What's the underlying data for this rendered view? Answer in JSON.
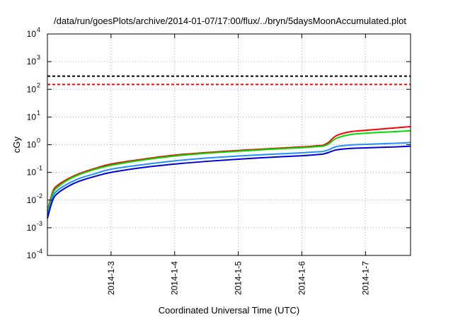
{
  "chart_data": {
    "type": "line",
    "title": "/data/run/goesPlots/archive/2014-01-07/17:00/flux/../bryn/5daysMoonAccumulated.plot",
    "xlabel": "Coordinated Universal Time (UTC)",
    "ylabel": "cGy",
    "y_scale": "log",
    "ylim": [
      0.0001,
      10000
    ],
    "xlim": [
      "2014-01-02T00:00",
      "2014-01-07T17:00"
    ],
    "grid": true,
    "x_ticks": [
      "2014-1-3",
      "2014-1-4",
      "2014-1-5",
      "2014-1-6",
      "2014-1-7"
    ],
    "x_tick_dates": [
      "2014-01-03T00:00",
      "2014-01-04T00:00",
      "2014-01-05T00:00",
      "2014-01-06T00:00",
      "2014-01-07T00:00"
    ],
    "y_ticks": [
      {
        "value": 0.0001,
        "base": "10",
        "exp": "-4"
      },
      {
        "value": 0.001,
        "base": "10",
        "exp": "-3"
      },
      {
        "value": 0.01,
        "base": "10",
        "exp": "-2"
      },
      {
        "value": 0.1,
        "base": "10",
        "exp": "-1"
      },
      {
        "value": 1,
        "base": "10",
        "exp": "0"
      },
      {
        "value": 10,
        "base": "10",
        "exp": "1"
      },
      {
        "value": 100,
        "base": "10",
        "exp": "2"
      },
      {
        "value": 1000,
        "base": "10",
        "exp": "3"
      },
      {
        "value": 10000,
        "base": "10",
        "exp": "4"
      }
    ],
    "reference_lines": [
      {
        "y": 300,
        "color": "#000000",
        "style": "dashed"
      },
      {
        "y": 150,
        "color": "#ff0000",
        "style": "dashed"
      }
    ],
    "series": [
      {
        "color": "#ff0000",
        "x": [
          "2014-01-02T00:00",
          "2014-01-02T02:00",
          "2014-01-02T04:00",
          "2014-01-02T08:00",
          "2014-01-02T12:00",
          "2014-01-02T18:00",
          "2014-01-03T00:00",
          "2014-01-03T12:00",
          "2014-01-04T00:00",
          "2014-01-04T12:00",
          "2014-01-05T00:00",
          "2014-01-05T12:00",
          "2014-01-06T00:00",
          "2014-01-06T07:00",
          "2014-01-06T08:00",
          "2014-01-06T10:00",
          "2014-01-06T13:00",
          "2014-01-06T18:00",
          "2014-01-07T00:00",
          "2014-01-07T12:00",
          "2014-01-07T17:00"
        ],
        "y": [
          0.004,
          0.02,
          0.035,
          0.06,
          0.09,
          0.14,
          0.2,
          0.3,
          0.42,
          0.52,
          0.62,
          0.72,
          0.83,
          0.93,
          0.95,
          1.2,
          2.1,
          2.9,
          3.3,
          4.1,
          4.5
        ]
      },
      {
        "color": "#00dd00",
        "x": [
          "2014-01-02T00:00",
          "2014-01-02T02:00",
          "2014-01-02T04:00",
          "2014-01-02T08:00",
          "2014-01-02T12:00",
          "2014-01-02T18:00",
          "2014-01-03T00:00",
          "2014-01-03T12:00",
          "2014-01-04T00:00",
          "2014-01-04T12:00",
          "2014-01-05T00:00",
          "2014-01-05T12:00",
          "2014-01-06T00:00",
          "2014-01-06T07:00",
          "2014-01-06T08:00",
          "2014-01-06T10:00",
          "2014-01-06T13:00",
          "2014-01-06T18:00",
          "2014-01-07T00:00",
          "2014-01-07T12:00",
          "2014-01-07T17:00"
        ],
        "y": [
          0.0035,
          0.017,
          0.03,
          0.055,
          0.083,
          0.13,
          0.18,
          0.28,
          0.39,
          0.49,
          0.58,
          0.68,
          0.78,
          0.87,
          0.89,
          1.05,
          1.7,
          2.3,
          2.6,
          3.0,
          3.2
        ]
      },
      {
        "color": "#1e90ff",
        "x": [
          "2014-01-02T00:00",
          "2014-01-02T02:00",
          "2014-01-02T04:00",
          "2014-01-02T08:00",
          "2014-01-02T12:00",
          "2014-01-02T18:00",
          "2014-01-03T00:00",
          "2014-01-03T12:00",
          "2014-01-04T00:00",
          "2014-01-04T12:00",
          "2014-01-05T00:00",
          "2014-01-05T12:00",
          "2014-01-06T00:00",
          "2014-01-06T07:00",
          "2014-01-06T08:00",
          "2014-01-06T10:00",
          "2014-01-06T13:00",
          "2014-01-06T18:00",
          "2014-01-07T00:00",
          "2014-01-07T12:00",
          "2014-01-07T17:00"
        ],
        "y": [
          0.0028,
          0.013,
          0.023,
          0.04,
          0.06,
          0.09,
          0.13,
          0.19,
          0.26,
          0.33,
          0.39,
          0.45,
          0.51,
          0.56,
          0.57,
          0.65,
          0.85,
          0.97,
          1.03,
          1.13,
          1.2
        ]
      },
      {
        "color": "#0000dd",
        "x": [
          "2014-01-02T00:00",
          "2014-01-02T02:00",
          "2014-01-02T04:00",
          "2014-01-02T08:00",
          "2014-01-02T12:00",
          "2014-01-02T18:00",
          "2014-01-03T00:00",
          "2014-01-03T12:00",
          "2014-01-04T00:00",
          "2014-01-04T12:00",
          "2014-01-05T00:00",
          "2014-01-05T12:00",
          "2014-01-06T00:00",
          "2014-01-06T07:00",
          "2014-01-06T08:00",
          "2014-01-06T10:00",
          "2014-01-06T13:00",
          "2014-01-06T18:00",
          "2014-01-07T00:00",
          "2014-01-07T12:00",
          "2014-01-07T17:00"
        ],
        "y": [
          0.0022,
          0.01,
          0.018,
          0.032,
          0.048,
          0.072,
          0.1,
          0.15,
          0.2,
          0.25,
          0.3,
          0.35,
          0.4,
          0.45,
          0.46,
          0.52,
          0.65,
          0.73,
          0.77,
          0.84,
          0.88
        ]
      }
    ]
  }
}
